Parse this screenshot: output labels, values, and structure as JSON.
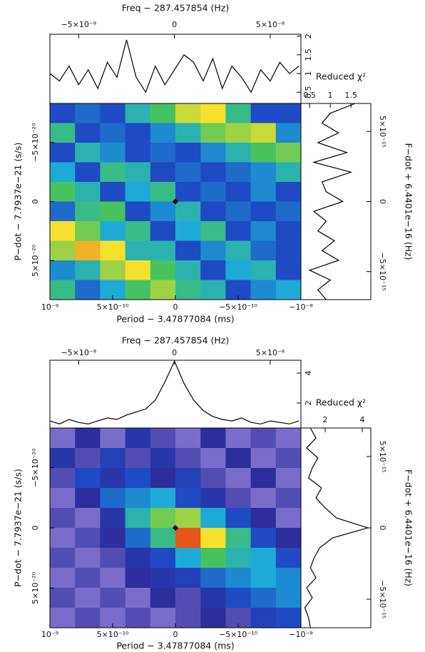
{
  "chart_data": [
    {
      "type": "heatmap",
      "top_axis_label": "Freq − 287.457854 (Hz)",
      "xlabel": "Period − 3.47877084 (ms)",
      "ylabel": "P−dot − 7.7937e−21 (s/s)",
      "y2label": "F−dot + 6.4401e−16 (Hz)",
      "profile_label": "Reduced χ²",
      "xlim": [
        1e-09,
        -1e-09
      ],
      "xticks": [
        {
          "value": 1e-09,
          "label": "10⁻⁹"
        },
        {
          "value": 5e-10,
          "label": "5×10⁻¹⁰"
        },
        0,
        {
          "value": -5e-10,
          "label": "−5×10⁻¹⁰"
        },
        {
          "value": -1e-09,
          "label": "−10⁻⁹"
        }
      ],
      "x2lim": [
        -6.5e-08,
        6.6e-08
      ],
      "x2ticks": [
        {
          "value": -5e-08,
          "label": "−5×10⁻⁸"
        },
        0,
        {
          "value": 5e-08,
          "label": "5×10⁻⁸"
        }
      ],
      "ylim": [
        8.3e-20,
        -8.3e-20
      ],
      "yticks": [
        {
          "value": -5e-20,
          "label": "−5×10⁻²⁰"
        },
        0,
        {
          "value": 5e-20,
          "label": "5×10⁻²⁰"
        }
      ],
      "y2lim": [
        -7e-15,
        7e-15
      ],
      "y2ticks": [
        {
          "value": 5e-15,
          "label": "5×10⁻¹⁵"
        },
        0,
        {
          "value": -5e-15,
          "label": "−5×10⁻¹⁵"
        }
      ],
      "best": [
        0,
        0
      ],
      "z": [
        [
          0.3,
          0.35,
          0.3,
          0.5,
          0.6,
          0.75,
          0.8,
          0.55,
          0.3,
          0.3
        ],
        [
          0.55,
          0.3,
          0.35,
          0.3,
          0.4,
          0.5,
          0.65,
          0.7,
          0.75,
          0.4
        ],
        [
          0.3,
          0.5,
          0.4,
          0.3,
          0.35,
          0.3,
          0.4,
          0.5,
          0.6,
          0.65
        ],
        [
          0.45,
          0.3,
          0.55,
          0.5,
          0.3,
          0.35,
          0.3,
          0.35,
          0.4,
          0.5
        ],
        [
          0.6,
          0.5,
          0.3,
          0.45,
          0.55,
          0.3,
          0.35,
          0.3,
          0.4,
          0.3
        ],
        [
          0.35,
          0.55,
          0.6,
          0.3,
          0.4,
          0.5,
          0.3,
          0.35,
          0.3,
          0.35
        ],
        [
          0.8,
          0.65,
          0.45,
          0.55,
          0.3,
          0.45,
          0.55,
          0.3,
          0.4,
          0.3
        ],
        [
          0.7,
          0.85,
          0.8,
          0.5,
          0.5,
          0.3,
          0.4,
          0.5,
          0.35,
          0.3
        ],
        [
          0.4,
          0.5,
          0.7,
          0.8,
          0.6,
          0.5,
          0.3,
          0.45,
          0.5,
          0.3
        ],
        [
          0.55,
          0.35,
          0.45,
          0.6,
          0.7,
          0.55,
          0.5,
          0.3,
          0.4,
          0.45
        ]
      ],
      "freq_profile": {
        "x": [
          -6.5e-08,
          -6e-08,
          -5.5e-08,
          -5e-08,
          -4.5e-08,
          -4e-08,
          -3.5e-08,
          -3e-08,
          -2.5e-08,
          -2e-08,
          -1.5e-08,
          -1e-08,
          -5e-09,
          0,
          5e-09,
          1e-08,
          1.5e-08,
          2e-08,
          2.5e-08,
          3e-08,
          3.5e-08,
          4e-08,
          4.5e-08,
          5e-08,
          5.5e-08,
          6e-08,
          6.5e-08
        ],
        "values": [
          1.0,
          0.8,
          1.2,
          0.7,
          1.1,
          0.6,
          1.3,
          0.9,
          1.9,
          0.9,
          0.5,
          1.2,
          0.7,
          1.1,
          1.5,
          1.3,
          0.8,
          1.4,
          0.6,
          1.2,
          0.9,
          0.5,
          1.1,
          0.8,
          1.3,
          1.0,
          1.2
        ],
        "ylim": [
          0.2,
          2.05
        ],
        "yticks": [
          0.5,
          1,
          1.5,
          2
        ]
      },
      "fdot_profile": {
        "y": [
          7e-15,
          6.3e-15,
          5.6e-15,
          4.9e-15,
          4.2e-15,
          3.5e-15,
          2.8e-15,
          2.1e-15,
          1.4e-15,
          7e-16,
          0,
          -7e-16,
          -1.4e-15,
          -2.1e-15,
          -2.8e-15,
          -3.5e-15,
          -4.2e-15,
          -4.9e-15,
          -5.6e-15,
          -6.3e-15,
          -7e-15
        ],
        "values": [
          1.6,
          1.0,
          0.8,
          1.2,
          0.7,
          1.4,
          0.6,
          1.5,
          0.8,
          0.9,
          1.3,
          0.6,
          0.9,
          0.7,
          1.1,
          0.8,
          1.2,
          0.5,
          1.0,
          0.7,
          0.9
        ],
        "xlim": [
          0.29,
          1.98
        ],
        "xticks": [
          0.5,
          1,
          1.5
        ]
      }
    },
    {
      "type": "heatmap",
      "top_axis_label": "Freq − 287.457854 (Hz)",
      "xlabel": "Period − 3.47877084 (ms)",
      "ylabel": "P−dot − 7.7937e−21 (s/s)",
      "y2label": "F−dot + 6.4401e−16 (Hz)",
      "profile_label": "Reduced χ²",
      "xlim": [
        1e-09,
        -1e-09
      ],
      "xticks": [
        {
          "value": 1e-09,
          "label": "10⁻⁹"
        },
        {
          "value": 5e-10,
          "label": "5×10⁻¹⁰"
        },
        0,
        {
          "value": -5e-10,
          "label": "−5×10⁻¹⁰"
        },
        {
          "value": -1e-09,
          "label": "−10⁻⁹"
        }
      ],
      "x2lim": [
        -6.5e-08,
        6.6e-08
      ],
      "x2ticks": [
        {
          "value": -5e-08,
          "label": "−5×10⁻⁸"
        },
        0,
        {
          "value": 5e-08,
          "label": "5×10⁻⁸"
        }
      ],
      "ylim": [
        8.3e-20,
        -8.3e-20
      ],
      "yticks": [
        {
          "value": -5e-20,
          "label": "−5×10⁻²⁰"
        },
        0,
        {
          "value": 5e-20,
          "label": "5×10⁻²⁰"
        }
      ],
      "y2lim": [
        -7e-15,
        7e-15
      ],
      "y2ticks": [
        {
          "value": 5e-15,
          "label": "5×10⁻¹⁵"
        },
        0,
        {
          "value": -5e-15,
          "label": "−5×10⁻¹⁵"
        }
      ],
      "best": [
        0,
        0
      ],
      "z": [
        [
          0.05,
          0.15,
          0.05,
          0.2,
          0.1,
          0.05,
          0.15,
          0.05,
          0.1,
          0.05
        ],
        [
          0.2,
          0.1,
          0.25,
          0.1,
          0.2,
          0.1,
          0.05,
          0.15,
          0.05,
          0.1
        ],
        [
          0.1,
          0.3,
          0.2,
          0.3,
          0.15,
          0.25,
          0.1,
          0.05,
          0.15,
          0.05
        ],
        [
          0.05,
          0.15,
          0.35,
          0.4,
          0.45,
          0.3,
          0.2,
          0.1,
          0.05,
          0.1
        ],
        [
          0.1,
          0.05,
          0.2,
          0.5,
          0.65,
          0.7,
          0.45,
          0.3,
          0.15,
          0.05
        ],
        [
          0.05,
          0.1,
          0.15,
          0.35,
          0.55,
          0.95,
          0.8,
          0.55,
          0.3,
          0.15
        ],
        [
          0.1,
          0.05,
          0.1,
          0.2,
          0.3,
          0.45,
          0.6,
          0.5,
          0.45,
          0.3
        ],
        [
          0.05,
          0.1,
          0.05,
          0.15,
          0.2,
          0.25,
          0.35,
          0.4,
          0.45,
          0.4
        ],
        [
          0.1,
          0.05,
          0.1,
          0.05,
          0.15,
          0.1,
          0.2,
          0.3,
          0.35,
          0.4
        ],
        [
          0.05,
          0.1,
          0.05,
          0.1,
          0.05,
          0.1,
          0.15,
          0.1,
          0.25,
          0.3
        ]
      ],
      "freq_profile": {
        "x": [
          -6.5e-08,
          -6e-08,
          -5.5e-08,
          -5e-08,
          -4.5e-08,
          -4e-08,
          -3.5e-08,
          -3e-08,
          -2.5e-08,
          -2e-08,
          -1.5e-08,
          -1e-08,
          -5e-09,
          0,
          5e-09,
          1e-08,
          1.5e-08,
          2e-08,
          2.5e-08,
          3e-08,
          3.5e-08,
          4e-08,
          4.5e-08,
          5e-08,
          5.5e-08,
          6e-08,
          6.5e-08
        ],
        "values": [
          0.8,
          0.6,
          0.9,
          0.7,
          0.6,
          0.8,
          1.0,
          0.9,
          1.2,
          1.4,
          1.6,
          2.2,
          3.4,
          4.8,
          3.3,
          2.2,
          1.5,
          1.1,
          0.9,
          0.8,
          1.0,
          0.7,
          0.6,
          0.8,
          0.7,
          0.6,
          0.8
        ],
        "ylim": [
          0.33,
          4.86
        ],
        "yticks": [
          2,
          4
        ]
      },
      "fdot_profile": {
        "y": [
          7e-15,
          6.3e-15,
          5.6e-15,
          4.9e-15,
          4.2e-15,
          3.5e-15,
          2.8e-15,
          2.1e-15,
          1.4e-15,
          7e-16,
          0,
          -7e-16,
          -1.4e-15,
          -2.1e-15,
          -2.8e-15,
          -3.5e-15,
          -4.2e-15,
          -4.9e-15,
          -5.6e-15,
          -6.3e-15,
          -7e-15
        ],
        "values": [
          1.2,
          1.5,
          1.0,
          1.6,
          1.3,
          1.1,
          1.8,
          1.5,
          2.0,
          2.6,
          4.3,
          2.4,
          1.7,
          1.4,
          1.2,
          1.5,
          1.0,
          1.3,
          0.9,
          1.1,
          1.2
        ],
        "xlim": [
          0.69,
          4.46
        ],
        "xticks": [
          2,
          4
        ]
      }
    }
  ]
}
